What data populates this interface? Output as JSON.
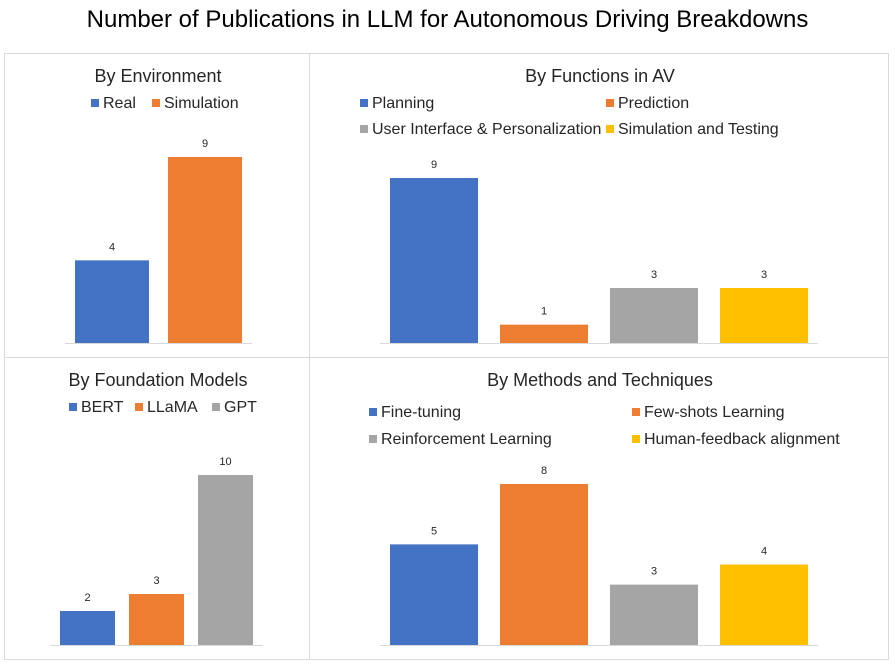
{
  "title": "Number of Publications in LLM for Autonomous Driving Breakdowns",
  "chart_data": [
    {
      "type": "bar",
      "title": "By Environment",
      "series": [
        {
          "name": "Real",
          "value": 4,
          "color": "#4472C4"
        },
        {
          "name": "Simulation",
          "value": 9,
          "color": "#ED7D31"
        }
      ]
    },
    {
      "type": "bar",
      "title": "By Functions in AV",
      "series": [
        {
          "name": "Planning",
          "value": 9,
          "color": "#4472C4"
        },
        {
          "name": "Prediction",
          "value": 1,
          "color": "#ED7D31"
        },
        {
          "name": "User Interface & Personalization",
          "value": 3,
          "color": "#A5A5A5"
        },
        {
          "name": "Simulation and Testing",
          "value": 3,
          "color": "#FFC000"
        }
      ]
    },
    {
      "type": "bar",
      "title": "By Foundation Models",
      "series": [
        {
          "name": "BERT",
          "value": 2,
          "color": "#4472C4"
        },
        {
          "name": "LLaMA",
          "value": 3,
          "color": "#ED7D31"
        },
        {
          "name": "GPT",
          "value": 10,
          "color": "#A5A5A5"
        }
      ]
    },
    {
      "type": "bar",
      "title": "By Methods and Techniques",
      "series": [
        {
          "name": "Fine-tuning",
          "value": 5,
          "color": "#4472C4"
        },
        {
          "name": "Few-shots Learning",
          "value": 8,
          "color": "#ED7D31"
        },
        {
          "name": "Reinforcement Learning",
          "value": 3,
          "color": "#A5A5A5"
        },
        {
          "name": "Human-feedback alignment",
          "value": 4,
          "color": "#FFC000"
        }
      ]
    }
  ]
}
